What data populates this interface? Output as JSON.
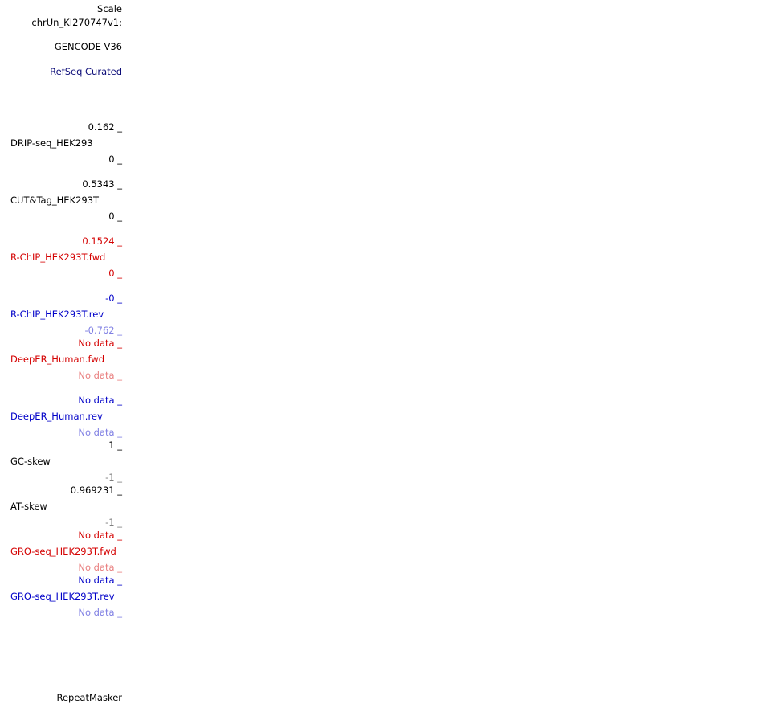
{
  "labels": {
    "scale": "Scale",
    "chrom": "chrUn_KI270747v1:",
    "gencode": "GENCODE V36",
    "refseq": "RefSeq Curated",
    "repeatmasker": "RepeatMasker"
  },
  "colors": {
    "navy": "#0c0c78",
    "red": "#d40000",
    "blue": "#0000c8",
    "light_blue": "#7f7fe3",
    "light_red": "#e97f7f",
    "grey": "#7f7f7f"
  },
  "tracks": {
    "drip": {
      "name": "DRIP-seq_HEK293",
      "max": "0.162 _",
      "min": "0 _"
    },
    "cuttag": {
      "name": "CUT&Tag_HEK293T",
      "max": "0.5343 _",
      "min": "0 _"
    },
    "rchip_fwd": {
      "name": "R-ChIP_HEK293T.fwd",
      "max": "0.1524 _",
      "min": "0 _"
    },
    "rchip_rev": {
      "name": "R-ChIP_HEK293T.rev",
      "max": "-0 _",
      "min": "-0.762 _"
    },
    "deeper_fwd": {
      "name": "DeepER_Human.fwd",
      "max": "No data _",
      "min": "No data _"
    },
    "deeper_rev": {
      "name": "DeepER_Human.rev",
      "max": "No data _",
      "min": "No data _"
    },
    "gc_skew": {
      "name": "GC-skew",
      "max": "1 _",
      "min": "-1 _"
    },
    "at_skew": {
      "name": "AT-skew",
      "max": "0.969231 _",
      "min": "-1 _"
    },
    "gro_fwd": {
      "name": "GRO-seq_HEK293T.fwd",
      "max": "No data _",
      "min": "No data _"
    },
    "gro_rev": {
      "name": "GRO-seq_HEK293T.rev",
      "max": "No data _",
      "min": "No data _"
    }
  }
}
